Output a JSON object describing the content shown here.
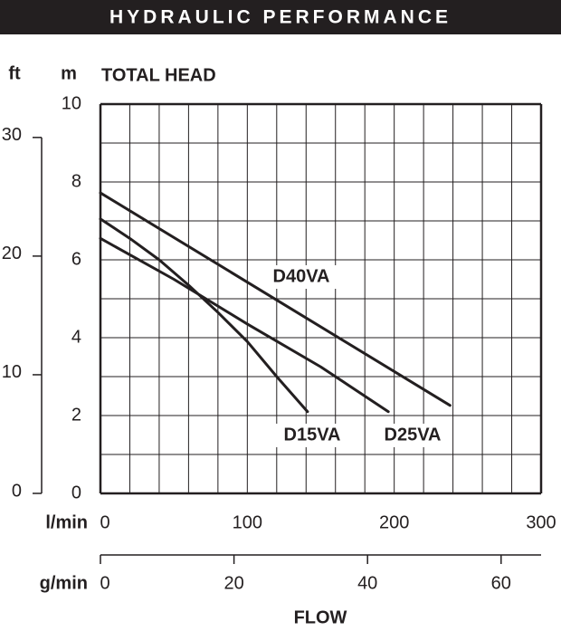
{
  "chart_data": {
    "type": "line",
    "title": "HYDRAULIC PERFORMANCE",
    "y_label": "TOTAL HEAD",
    "y_unit": "m",
    "y2_unit": "ft",
    "x_label": "FLOW",
    "x_unit": "l/min",
    "x2_unit": "g/min",
    "xlim": [
      0,
      300
    ],
    "xticks": [
      0,
      100,
      200,
      300
    ],
    "x2lim": [
      0,
      65.99
    ],
    "x2ticks": [
      0,
      20,
      40,
      60
    ],
    "ylim": [
      0,
      10
    ],
    "yticks": [
      0,
      2,
      4,
      6,
      8,
      10
    ],
    "y2lim": [
      0,
      32.81
    ],
    "y2ticks": [
      0,
      10,
      20,
      30
    ],
    "grid": true,
    "xgrid": [
      0,
      20,
      40,
      60,
      80,
      100,
      120,
      140,
      160,
      180,
      200,
      220,
      240,
      260,
      280,
      300
    ],
    "ygrid": [
      0,
      1,
      2,
      3,
      4,
      5,
      6,
      7,
      8,
      9,
      10
    ],
    "series": [
      {
        "name": "D15VA",
        "color": "#231f20",
        "x": [
          0,
          20,
          40,
          60,
          80,
          100,
          120,
          141
        ],
        "values": [
          7.05,
          6.55,
          6.0,
          5.35,
          4.65,
          3.9,
          3.0,
          2.1
        ]
      },
      {
        "name": "D25VA",
        "color": "#231f20",
        "x": [
          0,
          50,
          100,
          150,
          196
        ],
        "values": [
          6.55,
          5.5,
          4.35,
          3.25,
          2.1
        ]
      },
      {
        "name": "D40VA",
        "color": "#231f20",
        "x": [
          0,
          238
        ],
        "values": [
          7.72,
          2.26
        ]
      }
    ]
  }
}
